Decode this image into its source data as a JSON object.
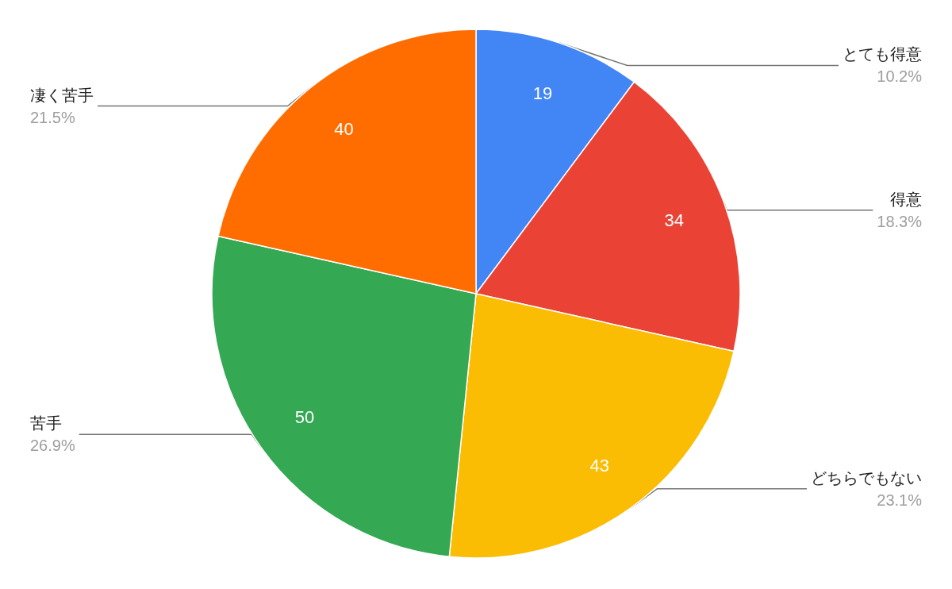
{
  "chart_data": {
    "type": "pie",
    "categories": [
      "とても得意",
      "得意",
      "どちらでもない",
      "苦手",
      "凄く苦手"
    ],
    "values": [
      19,
      34,
      43,
      50,
      40
    ],
    "colors": [
      "#4285f4",
      "#ea4335",
      "#fbbc04",
      "#34a853",
      "#ff6d01"
    ],
    "data_labels": true,
    "annotations": [
      "10.2%",
      "18.3%",
      "23.1%",
      "26.9%",
      "21.5%"
    ],
    "legend": false
  }
}
